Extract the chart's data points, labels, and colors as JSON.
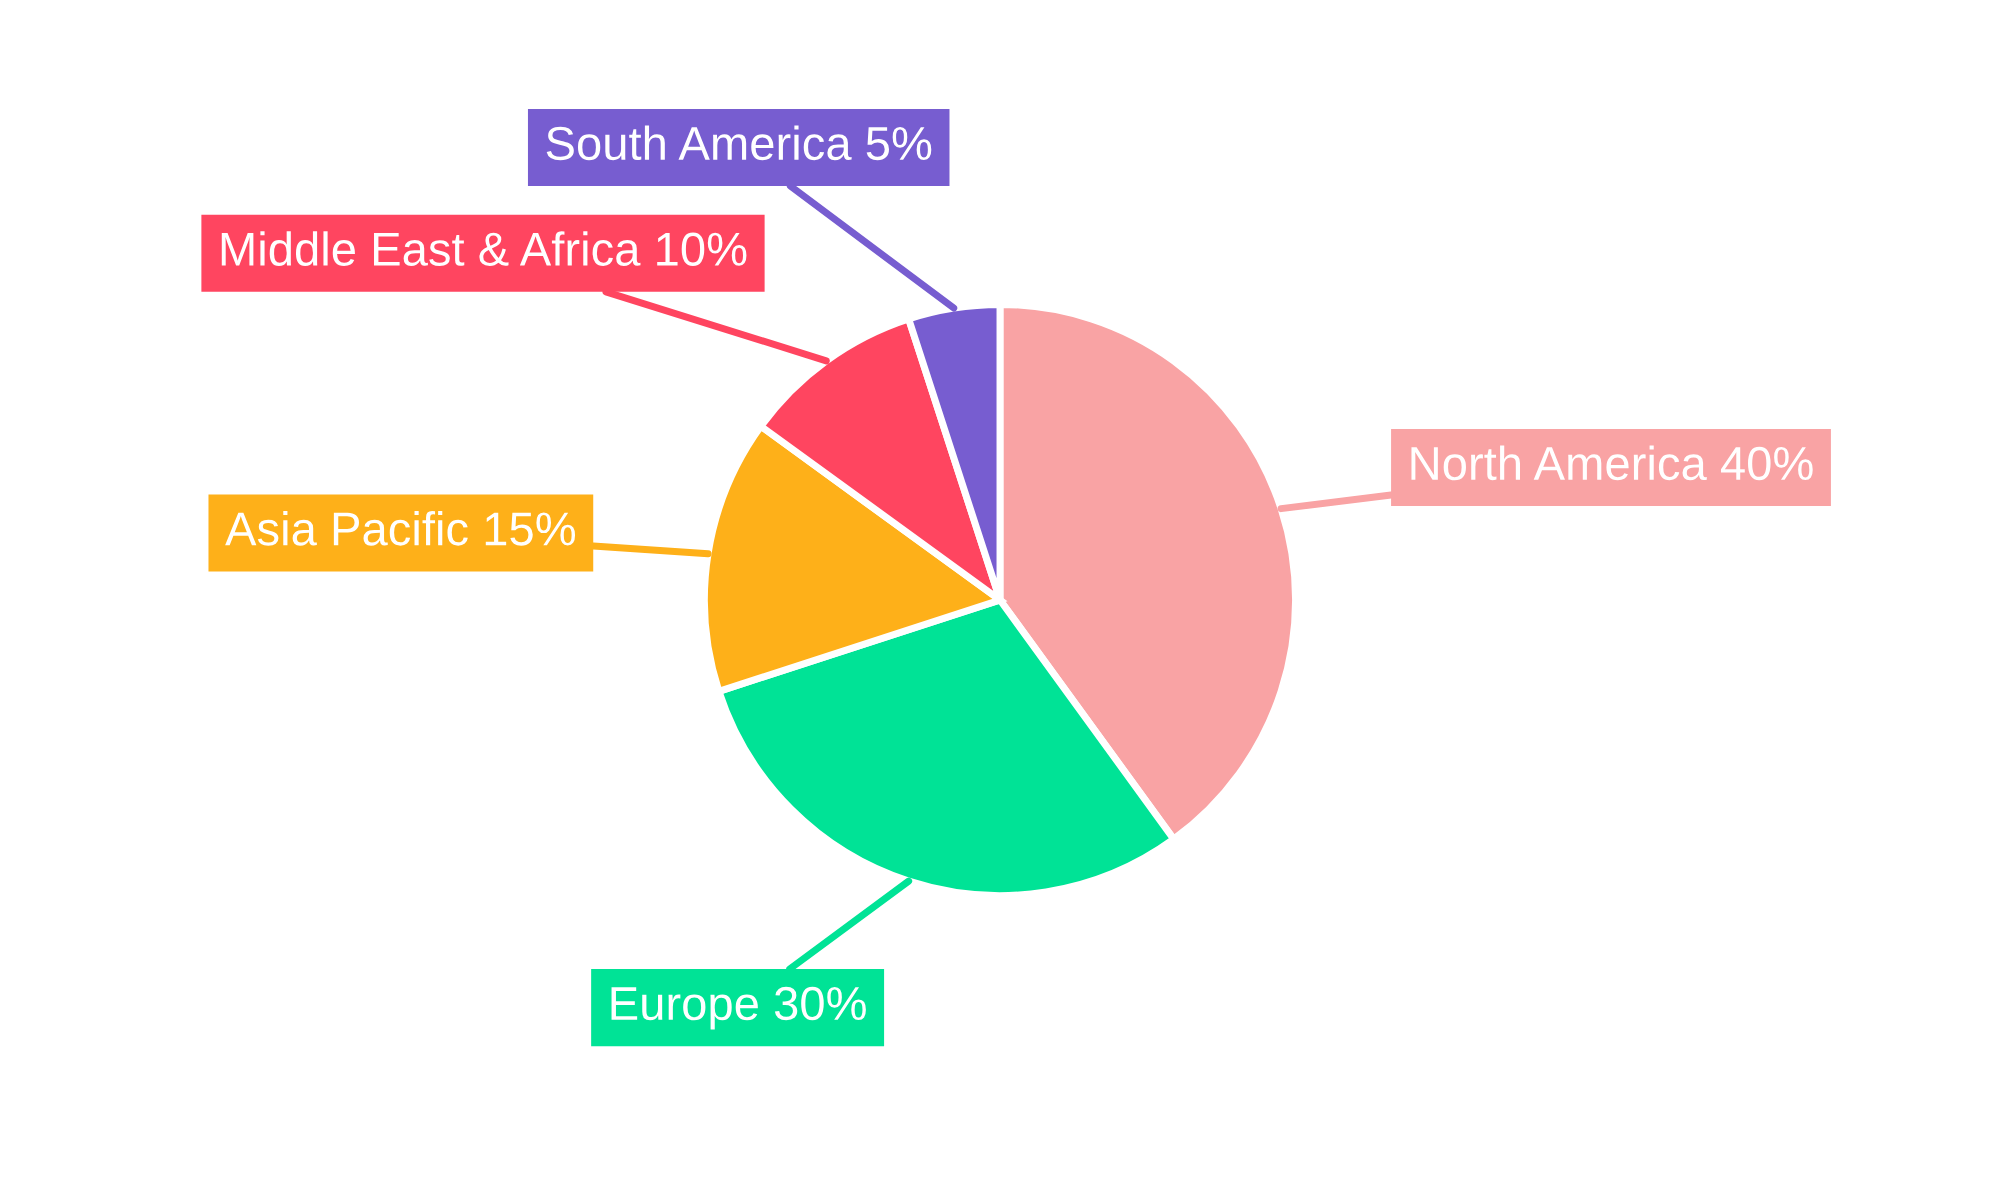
{
  "chart_data": {
    "type": "pie",
    "categories": [
      "North America",
      "Europe",
      "Asia Pacific",
      "Middle East & Africa",
      "South America"
    ],
    "values": [
      40,
      30,
      15,
      10,
      5
    ],
    "value_labels": [
      "40%",
      "30%",
      "15%",
      "10%",
      "5%"
    ],
    "colors": [
      "#f9a3a4",
      "#00e396",
      "#feb019",
      "#ff4560",
      "#775dd0"
    ],
    "legend": false
  }
}
